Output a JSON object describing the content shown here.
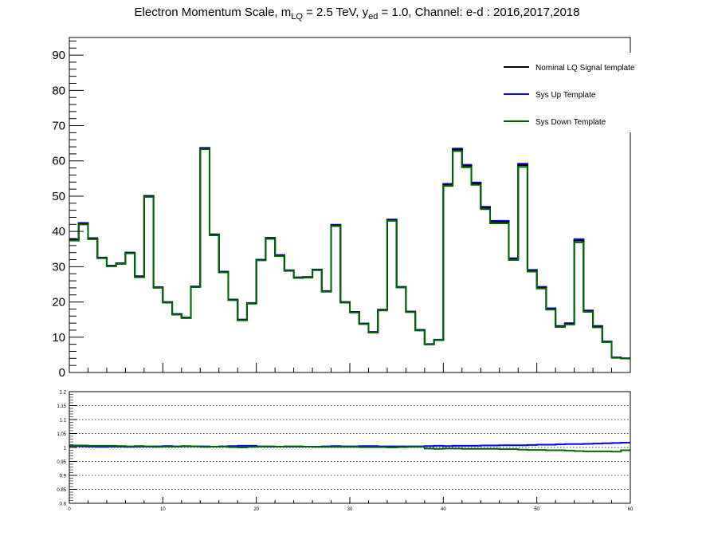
{
  "title": {
    "prefix": "Electron Momentum Scale, m",
    "sub_lq": "LQ",
    "mid1": " = 2.5 TeV, y",
    "sub_ed": "ed",
    "suffix": " = 1.0, Channel: e-d : 2016,2017,2018"
  },
  "chart_data": [
    {
      "type": "line",
      "step": true,
      "title": "Electron Momentum Scale, m_LQ = 2.5 TeV, y_ed = 1.0, Channel: e-d : 2016,2017,2018",
      "xlim": [
        0,
        60
      ],
      "ylim": [
        0,
        95
      ],
      "yticks": [
        0,
        10,
        20,
        30,
        40,
        50,
        60,
        70,
        80,
        90
      ],
      "ytick_labels": [
        "0",
        "10",
        "20",
        "30",
        "40",
        "50",
        "60",
        "70",
        "80",
        "90"
      ],
      "legend_position": "top-right",
      "bin_edges": [
        0,
        1,
        2,
        3,
        4,
        5,
        6,
        7,
        8,
        9,
        10,
        11,
        12,
        13,
        14,
        15,
        16,
        17,
        18,
        19,
        20,
        21,
        22,
        23,
        24,
        25,
        26,
        27,
        28,
        29,
        30,
        31,
        32,
        33,
        34,
        35,
        36,
        37,
        38,
        39,
        40,
        41,
        42,
        43,
        44,
        45,
        46,
        47,
        48,
        49,
        50,
        51,
        52,
        53,
        54,
        55,
        56,
        57,
        58,
        59,
        60
      ],
      "series": [
        {
          "name": "Nominal LQ Signal template",
          "color": "#000000",
          "values": [
            37.6,
            42.2,
            38.0,
            32.5,
            30.2,
            30.9,
            33.9,
            27.2,
            50.0,
            24.1,
            19.9,
            16.5,
            15.5,
            24.3,
            63.5,
            39.1,
            28.5,
            20.6,
            14.9,
            19.6,
            31.9,
            38.1,
            33.2,
            28.9,
            26.9,
            27.0,
            29.1,
            23.0,
            41.7,
            19.9,
            17.1,
            13.8,
            11.4,
            17.7,
            43.2,
            24.2,
            17.2,
            12.0,
            8.0,
            9.2,
            53.2,
            63.2,
            58.6,
            53.6,
            46.7,
            42.7,
            42.7,
            32.2,
            58.8,
            28.9,
            24.1,
            18.0,
            13.1,
            13.8,
            37.4,
            17.4,
            13.0,
            8.7,
            4.2,
            4.0
          ]
        },
        {
          "name": "Sys Up Template",
          "color": "#0000ff",
          "values": [
            37.8,
            42.4,
            38.1,
            32.6,
            30.3,
            31.0,
            34.0,
            27.3,
            50.1,
            24.2,
            20.0,
            16.6,
            15.6,
            24.4,
            63.7,
            39.2,
            28.6,
            20.7,
            15.0,
            19.7,
            32.0,
            38.2,
            33.3,
            29.0,
            27.0,
            27.1,
            29.2,
            23.1,
            41.9,
            20.0,
            17.2,
            13.9,
            11.5,
            17.8,
            43.4,
            24.3,
            17.3,
            12.1,
            8.05,
            9.3,
            53.5,
            63.5,
            58.9,
            53.9,
            47.0,
            43.0,
            43.0,
            32.4,
            59.2,
            29.1,
            24.3,
            18.2,
            13.2,
            14.0,
            37.8,
            17.6,
            13.2,
            8.8,
            4.3,
            4.05
          ]
        },
        {
          "name": "Sys Down Template",
          "color": "#006600",
          "values": [
            37.4,
            42.0,
            37.8,
            32.4,
            30.1,
            30.8,
            33.8,
            27.0,
            49.8,
            24.0,
            19.8,
            16.4,
            15.4,
            24.2,
            63.3,
            38.9,
            28.4,
            20.5,
            14.8,
            19.5,
            31.8,
            37.9,
            33.0,
            28.8,
            26.8,
            26.9,
            29.0,
            22.9,
            41.5,
            19.8,
            17.0,
            13.7,
            11.3,
            17.6,
            43.0,
            24.1,
            17.1,
            11.9,
            7.95,
            9.15,
            52.9,
            62.8,
            58.2,
            53.2,
            46.3,
            42.3,
            42.3,
            31.9,
            58.3,
            28.6,
            23.8,
            17.8,
            12.9,
            13.6,
            36.9,
            17.2,
            12.8,
            8.6,
            4.15,
            3.95
          ]
        }
      ]
    },
    {
      "type": "line",
      "step": true,
      "xlim": [
        0,
        60
      ],
      "ylim": [
        0.8,
        1.2
      ],
      "xticks": [
        0,
        10,
        20,
        30,
        40,
        50,
        60
      ],
      "xtick_labels": [
        "0",
        "10",
        "20",
        "30",
        "40",
        "50",
        "60"
      ],
      "yticks": [
        0.8,
        0.85,
        0.9,
        0.95,
        1,
        1.05,
        1.1,
        1.15,
        1.2
      ],
      "ytick_labels": [
        "0.8",
        "0.85",
        "0.9",
        "0.95",
        "1",
        "1.05",
        "1.1",
        "1.15",
        "1.2"
      ],
      "grid": "horizontal dotted",
      "series": [
        {
          "name": "Sys Up Template",
          "color": "#0000ff",
          "values": [
            1.005,
            1.004,
            1.003,
            1.002,
            1.003,
            1.003,
            1.002,
            1.003,
            1.003,
            1.004,
            1.005,
            1.004,
            1.004,
            1.004,
            1.004,
            1.003,
            1.004,
            1.005,
            1.006,
            1.006,
            1.004,
            1.003,
            1.003,
            1.003,
            1.003,
            1.003,
            1.003,
            1.004,
            1.005,
            1.004,
            1.004,
            1.005,
            1.005,
            1.004,
            1.004,
            1.004,
            1.004,
            1.004,
            1.005,
            1.006,
            1.005,
            1.006,
            1.006,
            1.006,
            1.007,
            1.007,
            1.008,
            1.008,
            1.008,
            1.009,
            1.01,
            1.01,
            1.011,
            1.012,
            1.012,
            1.013,
            1.014,
            1.015,
            1.016,
            1.017
          ]
        },
        {
          "name": "Sys Down Template",
          "color": "#006600",
          "values": [
            1.007,
            1.007,
            1.006,
            1.006,
            1.006,
            1.005,
            1.004,
            1.005,
            1.004,
            1.002,
            1.003,
            1.003,
            1.005,
            1.004,
            1.002,
            1.003,
            1.003,
            1.001,
            1.0,
            1.002,
            1.003,
            1.004,
            1.003,
            1.004,
            1.004,
            1.003,
            1.002,
            1.002,
            1.002,
            1.002,
            1.002,
            1.001,
            1.001,
            1.001,
            1.0,
            1.001,
            1.002,
            1.002,
            0.996,
            0.995,
            0.996,
            0.996,
            0.995,
            0.995,
            0.995,
            0.995,
            0.994,
            0.994,
            0.992,
            0.991,
            0.991,
            0.99,
            0.99,
            0.989,
            0.987,
            0.986,
            0.986,
            0.986,
            0.985,
            0.99
          ]
        }
      ]
    }
  ]
}
